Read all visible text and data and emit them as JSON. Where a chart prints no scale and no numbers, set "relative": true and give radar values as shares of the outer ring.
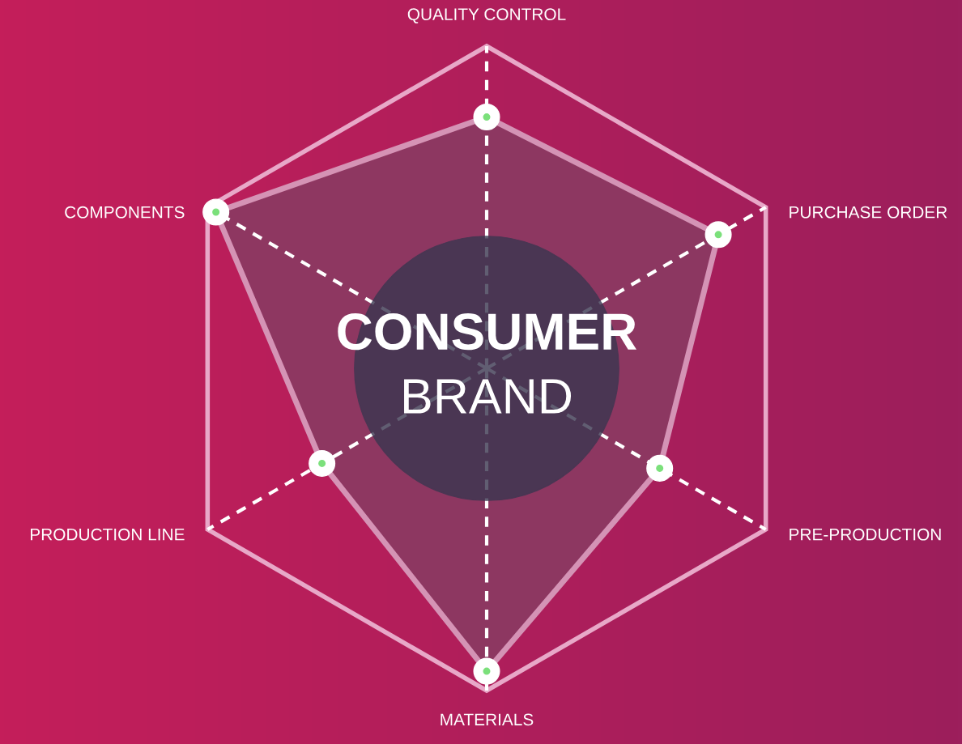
{
  "chart_data": {
    "type": "radar",
    "relative": true,
    "grid": true,
    "marker": "circle",
    "categories": [
      "QUALITY CONTROL",
      "PURCHASE ORDER",
      "PRE-PRODUCTION",
      "MATERIALS",
      "PRODUCTION LINE",
      "COMPONENTS"
    ],
    "series": [
      {
        "color": "#8a3a62",
        "values": [
          0.78,
          0.83,
          0.62,
          0.94,
          0.59,
          0.97
        ]
      }
    ],
    "annotations": [
      "CONSUMER",
      "BRAND"
    ]
  }
}
